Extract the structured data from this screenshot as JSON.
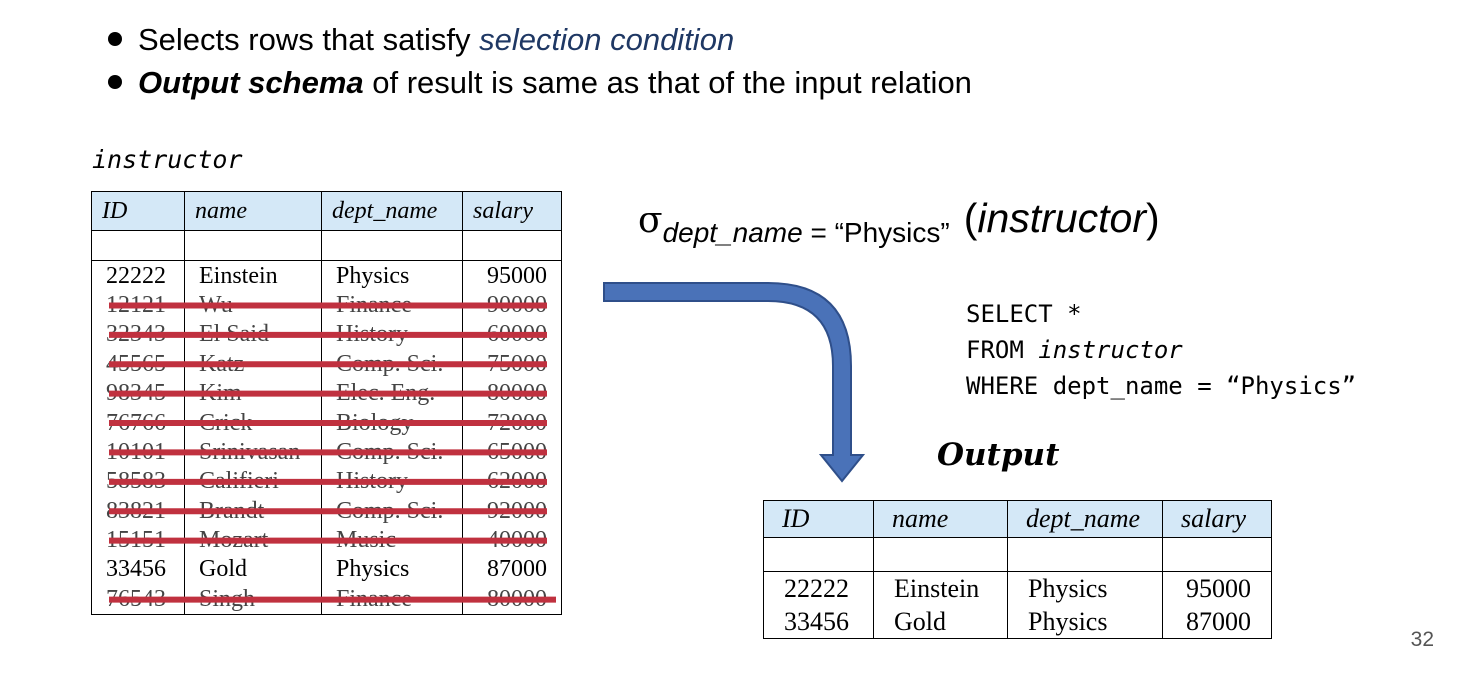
{
  "bullets": {
    "b1_text": "Selects rows that satisfy ",
    "b1_emph": "selection condition",
    "b2_emph": "Output schema",
    "b2_text": " of result is same as that of the input relation"
  },
  "instructor_table": {
    "label": "instructor",
    "headers": [
      "ID",
      "name",
      "dept_name",
      "salary"
    ],
    "rows": [
      {
        "id": "22222",
        "name": "Einstein",
        "dept": "Physics",
        "salary": "95000",
        "struck": false
      },
      {
        "id": "12121",
        "name": "Wu",
        "dept": "Finance",
        "salary": "90000",
        "struck": true
      },
      {
        "id": "32343",
        "name": "El Said",
        "dept": "History",
        "salary": "60000",
        "struck": true
      },
      {
        "id": "45565",
        "name": "Katz",
        "dept": "Comp. Sci.",
        "salary": "75000",
        "struck": true
      },
      {
        "id": "98345",
        "name": "Kim",
        "dept": "Elec. Eng.",
        "salary": "80000",
        "struck": true
      },
      {
        "id": "76766",
        "name": "Crick",
        "dept": "Biology",
        "salary": "72000",
        "struck": true
      },
      {
        "id": "10101",
        "name": "Srinivasan",
        "dept": "Comp. Sci.",
        "salary": "65000",
        "struck": true
      },
      {
        "id": "58583",
        "name": "Califieri",
        "dept": "History",
        "salary": "62000",
        "struck": true
      },
      {
        "id": "83821",
        "name": "Brandt",
        "dept": "Comp. Sci.",
        "salary": "92000",
        "struck": true
      },
      {
        "id": "15151",
        "name": "Mozart",
        "dept": "Music",
        "salary": "40000",
        "struck": true
      },
      {
        "id": "33456",
        "name": "Gold",
        "dept": "Physics",
        "salary": "87000",
        "struck": false
      },
      {
        "id": "76543",
        "name": "Singh",
        "dept": "Finance",
        "salary": "80000",
        "struck": true
      }
    ]
  },
  "expression": {
    "sigma": "σ",
    "condition_attr": "dept_name",
    "condition_rest": " = “Physics”",
    "relation": "instructor"
  },
  "sql": {
    "line1": "SELECT *",
    "line2_kw": "FROM ",
    "line2_rel": "instructor",
    "line3": "WHERE dept_name = “Physics”"
  },
  "output_table": {
    "label": "Output",
    "headers": [
      "ID",
      "name",
      "dept_name",
      "salary"
    ],
    "rows": [
      {
        "id": "22222",
        "name": "Einstein",
        "dept": "Physics",
        "salary": "95000"
      },
      {
        "id": "33456",
        "name": "Gold",
        "dept": "Physics",
        "salary": "87000"
      }
    ]
  },
  "colors": {
    "strike": "#c0313f",
    "header_bg": "#d4e8f7",
    "arrow_fill": "#4a72b8",
    "arrow_stroke": "#2f4f8a",
    "emphasis": "#1f3864"
  },
  "page_number": "32"
}
